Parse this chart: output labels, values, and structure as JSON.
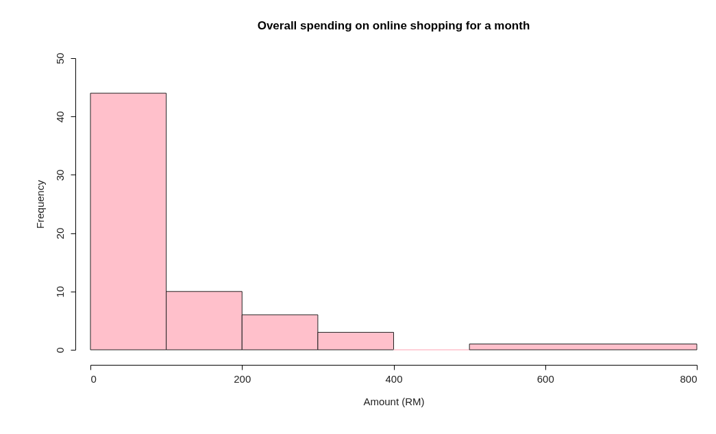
{
  "chart_data": {
    "type": "histogram",
    "title": "Overall spending on online shopping for a month",
    "xlabel": "Amount (RM)",
    "ylabel": "Frequency",
    "bins": [
      0,
      100,
      200,
      300,
      400,
      500,
      800
    ],
    "values": [
      44,
      10,
      6,
      3,
      0,
      1
    ],
    "color": "#ffc0cb",
    "xlim": [
      0,
      800
    ],
    "xticks": [
      0,
      200,
      400,
      600,
      800
    ],
    "ylim": [
      0,
      50
    ],
    "yticks": [
      0,
      10,
      20,
      30,
      40,
      50
    ],
    "grid": false
  }
}
